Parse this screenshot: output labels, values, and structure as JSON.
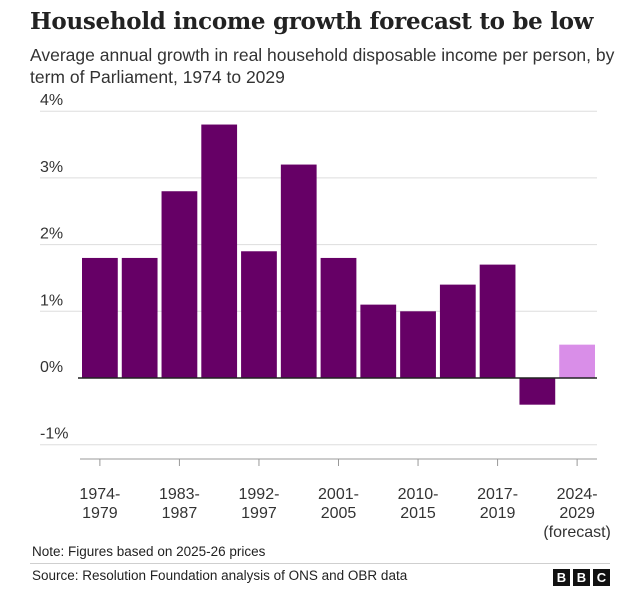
{
  "header": {
    "title": "Household income growth forecast to be low",
    "subtitle": "Average annual growth in real household disposable income per person, by term of Parliament, 1974 to 2029"
  },
  "footer": {
    "note": "Note: Figures based on 2025-26 prices",
    "source": "Source: Resolution Foundation analysis of ONS and OBR data",
    "logo_letters": [
      "B",
      "B",
      "C"
    ]
  },
  "colors": {
    "bar": "#660066",
    "forecast_bar": "#d98ee8",
    "grid": "#dddddd",
    "zero_line": "#222222"
  },
  "chart_data": {
    "type": "bar",
    "title": "Household income growth forecast to be low",
    "xlabel": "",
    "ylabel": "",
    "ylim": [
      -1.2,
      4.1
    ],
    "yticks": [
      4,
      3,
      2,
      1,
      0,
      -1
    ],
    "ytick_labels": [
      "4%",
      "3%",
      "2%",
      "1%",
      "0%",
      "-1%"
    ],
    "grid": true,
    "values": [
      1.8,
      1.8,
      2.8,
      3.8,
      1.9,
      3.2,
      1.8,
      1.1,
      1.0,
      1.4,
      1.7,
      -0.4,
      0.5
    ],
    "forecast": [
      false,
      false,
      false,
      false,
      false,
      false,
      false,
      false,
      false,
      false,
      false,
      false,
      true
    ],
    "xtick_labels": [
      {
        "at": 0.5,
        "lines": [
          "1974-",
          "1979"
        ]
      },
      {
        "at": 2.5,
        "lines": [
          "1983-",
          "1987"
        ]
      },
      {
        "at": 4.5,
        "lines": [
          "1992-",
          "1997"
        ]
      },
      {
        "at": 6.5,
        "lines": [
          "2001-",
          "2005"
        ]
      },
      {
        "at": 8.5,
        "lines": [
          "2010-",
          "2015"
        ]
      },
      {
        "at": 10.5,
        "lines": [
          "2017-",
          "2019"
        ]
      },
      {
        "at": 12.5,
        "lines": [
          "2024-",
          "2029",
          "(forecast)"
        ]
      }
    ]
  }
}
